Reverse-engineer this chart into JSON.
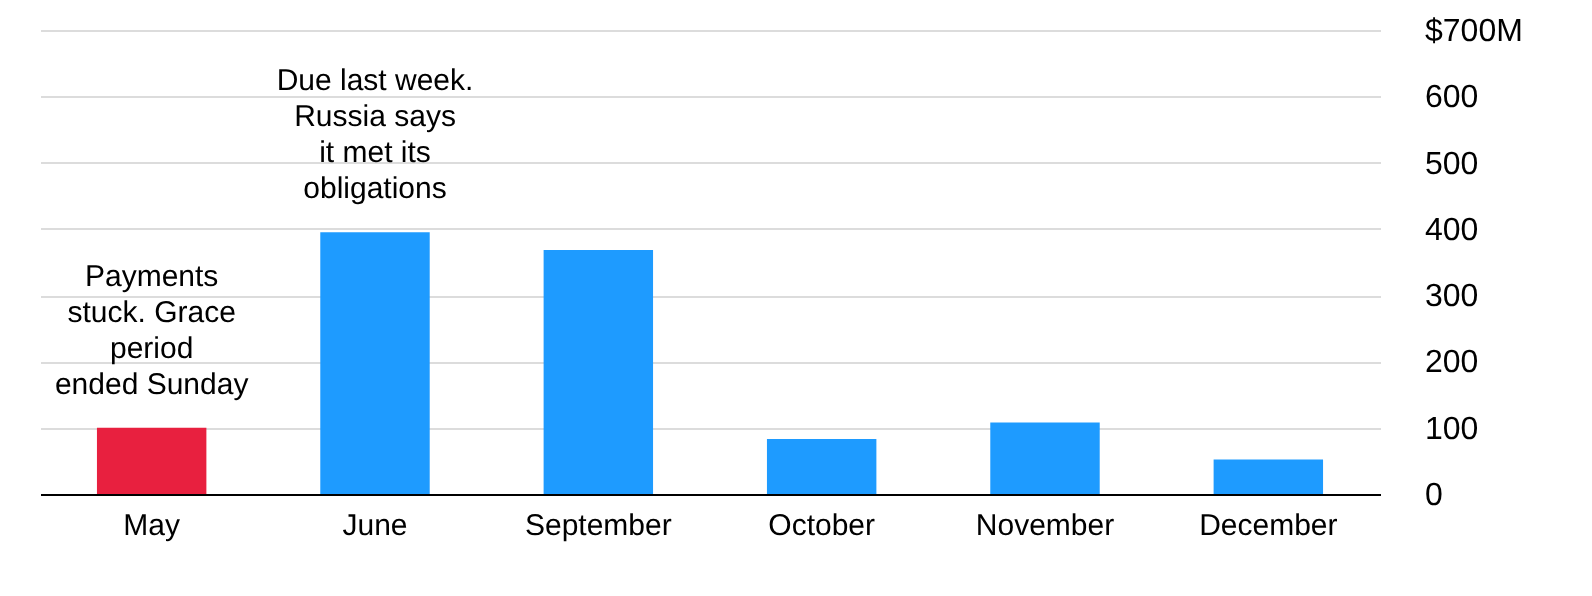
{
  "chart_data": {
    "type": "bar",
    "categories": [
      "May",
      "June",
      "September",
      "October",
      "November",
      "December"
    ],
    "values": [
      100,
      395,
      368,
      83,
      108,
      52
    ],
    "colors": [
      "#e8203f",
      "#1e9bff",
      "#1e9bff",
      "#1e9bff",
      "#1e9bff",
      "#1e9bff"
    ],
    "ylim": [
      0,
      700
    ],
    "yticks": [
      0,
      100,
      200,
      300,
      400,
      500,
      600,
      {
        "value": 700,
        "label": "$700M"
      }
    ],
    "grid": "y",
    "annotations": [
      {
        "text": "Payments\nstuck. Grace\nperiod\nended Sunday",
        "x": "May",
        "y": 100
      },
      {
        "text": "Due last week.\nRussia says\nit met its\nobligations",
        "x": "June",
        "y": 395
      }
    ]
  }
}
